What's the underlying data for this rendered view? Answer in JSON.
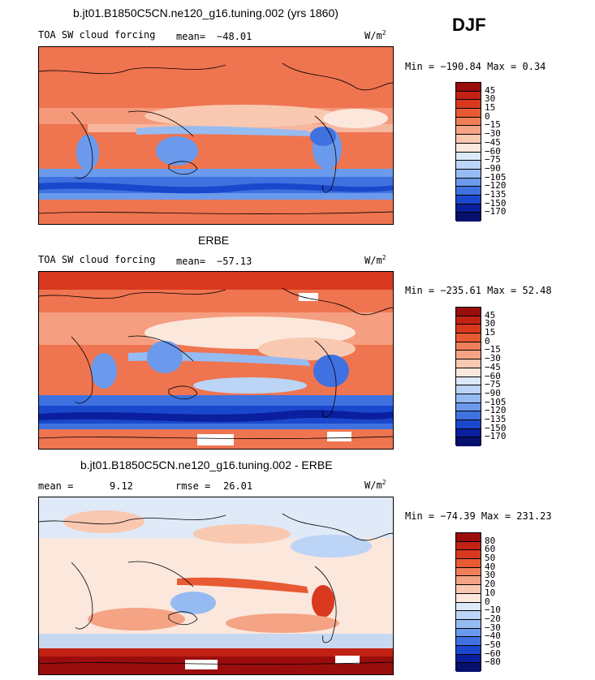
{
  "season": "DJF",
  "units": "W/m",
  "units_sup": "2",
  "panels": [
    {
      "title": "b.jt01.B1850C5CN.ne120_g16.tuning.002 (yrs 1860)",
      "left_label": "TOA SW cloud forcing",
      "mean_label": "mean=",
      "mean_value": "−48.01",
      "minmax": "Min = −190.84 Max =   0.34",
      "levels": [
        "45",
        "30",
        "15",
        "0",
        "−15",
        "−30",
        "−45",
        "−60",
        "−75",
        "−90",
        "−105",
        "−120",
        "−135",
        "−150",
        "−170"
      ],
      "colors": [
        "#9a0d0d",
        "#c12214",
        "#d9391e",
        "#e85a33",
        "#f07e5b",
        "#f5a385",
        "#f9c8b1",
        "#fbe7dc",
        "#dce9f9",
        "#bcd4f6",
        "#96bbf2",
        "#6b9aec",
        "#3f72e0",
        "#1a48cc",
        "#0a1f9e",
        "#06106e"
      ]
    },
    {
      "title": "ERBE",
      "left_label": "TOA SW cloud forcing",
      "mean_label": "mean=",
      "mean_value": "−57.13",
      "minmax": "Min = −235.61 Max =  52.48",
      "levels": [
        "45",
        "30",
        "15",
        "0",
        "−15",
        "−30",
        "−45",
        "−60",
        "−75",
        "−90",
        "−105",
        "−120",
        "−135",
        "−150",
        "−170"
      ],
      "colors": [
        "#9a0d0d",
        "#c12214",
        "#d9391e",
        "#e85a33",
        "#f07e5b",
        "#f5a385",
        "#f9c8b1",
        "#fbe7dc",
        "#dce9f9",
        "#bcd4f6",
        "#96bbf2",
        "#6b9aec",
        "#3f72e0",
        "#1a48cc",
        "#0a1f9e",
        "#06106e"
      ]
    },
    {
      "title": "b.jt01.B1850C5CN.ne120_g16.tuning.002 - ERBE",
      "left_label": "mean =",
      "mean_label": "",
      "mean_value": "9.12",
      "rmse_label": "rmse =",
      "rmse_value": "26.01",
      "minmax": "Min = −74.39 Max = 231.23",
      "levels": [
        "80",
        "60",
        "50",
        "40",
        "30",
        "20",
        "10",
        "0",
        "−10",
        "−20",
        "−30",
        "−40",
        "−50",
        "−60",
        "−80"
      ],
      "colors": [
        "#9a0d0d",
        "#c12214",
        "#d9391e",
        "#e85a33",
        "#f07e5b",
        "#f5a385",
        "#f9c8b1",
        "#fbe7dc",
        "#dce9f9",
        "#bcd4f6",
        "#96bbf2",
        "#6b9aec",
        "#3f72e0",
        "#1a48cc",
        "#0a1f9e",
        "#06106e"
      ]
    }
  ],
  "chart_data": [
    {
      "type": "heatmap",
      "title": "b.jt01.B1850C5CN.ne120_g16.tuning.002 (yrs 1860)",
      "variable": "TOA SW cloud forcing",
      "units": "W/m2",
      "mean": -48.01,
      "min": -190.84,
      "max": 0.34,
      "contour_levels": [
        45,
        30,
        15,
        0,
        -15,
        -30,
        -45,
        -60,
        -75,
        -90,
        -105,
        -120,
        -135,
        -150,
        -170
      ]
    },
    {
      "type": "heatmap",
      "title": "ERBE",
      "variable": "TOA SW cloud forcing",
      "units": "W/m2",
      "mean": -57.13,
      "min": -235.61,
      "max": 52.48,
      "contour_levels": [
        45,
        30,
        15,
        0,
        -15,
        -30,
        -45,
        -60,
        -75,
        -90,
        -105,
        -120,
        -135,
        -150,
        -170
      ]
    },
    {
      "type": "heatmap",
      "title": "b.jt01.B1850C5CN.ne120_g16.tuning.002 - ERBE",
      "units": "W/m2",
      "mean": 9.12,
      "rmse": 26.01,
      "min": -74.39,
      "max": 231.23,
      "contour_levels": [
        80,
        60,
        50,
        40,
        30,
        20,
        10,
        0,
        -10,
        -20,
        -30,
        -40,
        -50,
        -60,
        -80
      ]
    }
  ]
}
